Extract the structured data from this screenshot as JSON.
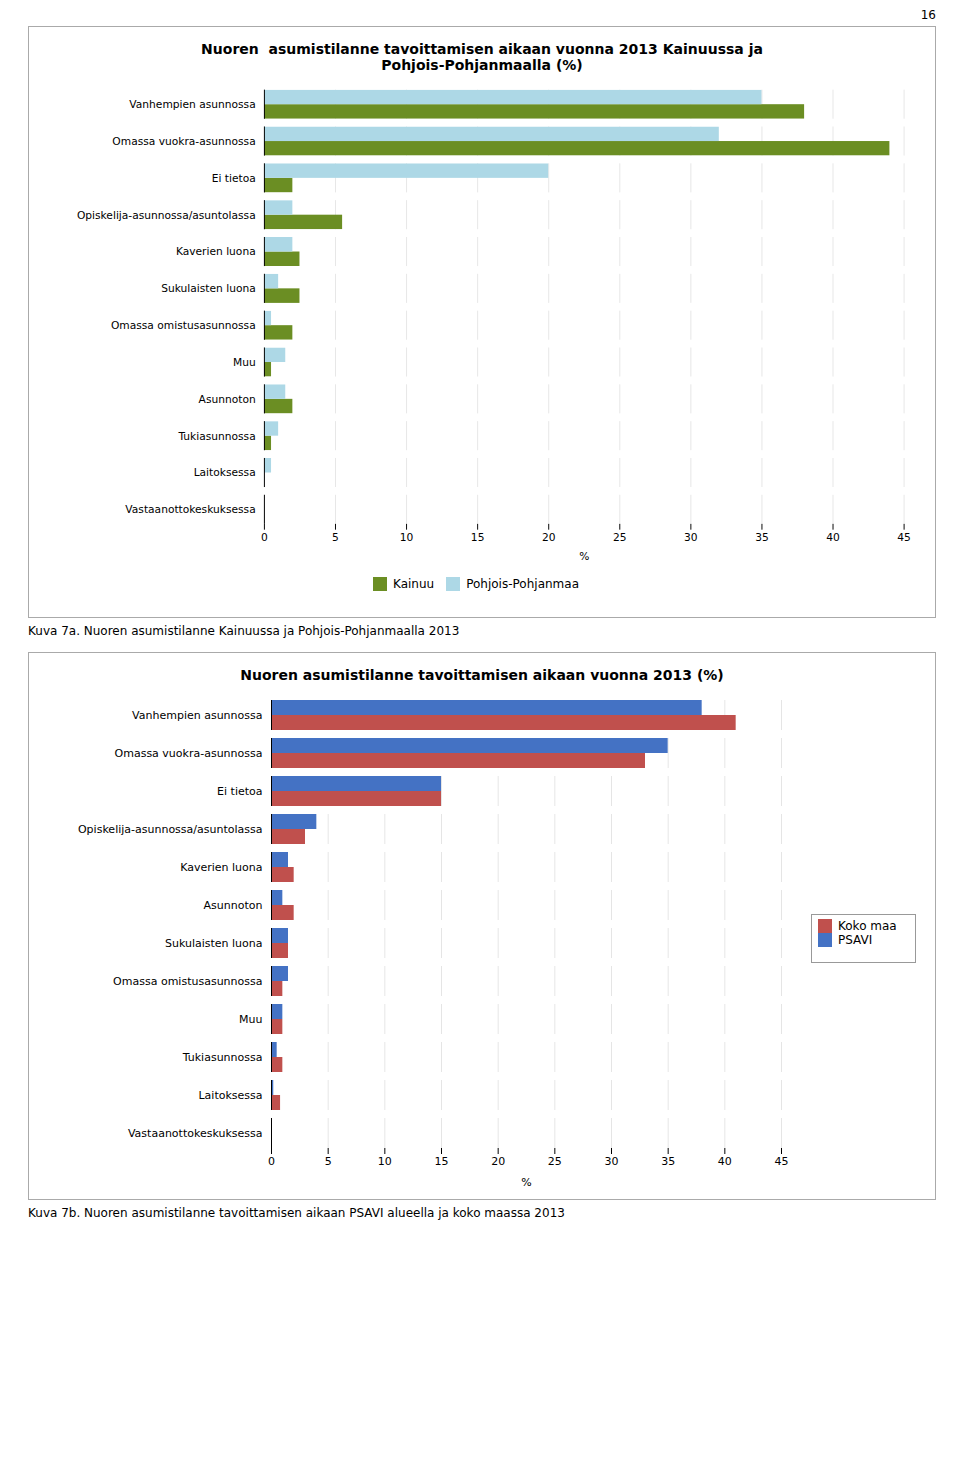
{
  "page_number": "16",
  "chart_data": [
    {
      "type": "bar",
      "orientation": "horizontal",
      "title": "Nuoren  asumistilanne tavoittamisen aikaan vuonna 2013 Kainuussa ja\nPohjois-Pohjanmaalla (%)",
      "categories": [
        "Vanhempien asunnossa",
        "Omassa vuokra-asunnossa",
        "Ei tietoa",
        "Opiskelija-asunnossa/asuntolassa",
        "Kaverien luona",
        "Sukulaisten luona",
        "Omassa omistusasunnossa",
        "Muu",
        "Asunnoton",
        "Tukiasunnossa",
        "Laitoksessa",
        "Vastaanottokeskuksessa"
      ],
      "series": [
        {
          "name": "Kainuu",
          "color": "#6b8e23",
          "values": [
            38.0,
            44.0,
            2.0,
            5.5,
            2.5,
            2.5,
            2.0,
            0.5,
            2.0,
            0.5,
            0.0,
            0.0
          ]
        },
        {
          "name": "Pohjois-Pohjanmaa",
          "color": "#add8e6",
          "values": [
            35.0,
            32.0,
            20.0,
            2.0,
            2.0,
            1.0,
            0.5,
            1.5,
            1.5,
            1.0,
            0.5,
            0.0
          ]
        }
      ],
      "xlabel": "%",
      "xlim": [
        0,
        45
      ],
      "xticks": [
        0,
        5,
        10,
        15,
        20,
        25,
        30,
        35,
        40,
        45
      ],
      "grid": true,
      "legend": "bottom",
      "caption": "Kuva 7a. Nuoren asumistilanne Kainuussa ja Pohjois-Pohjanmaalla 2013"
    },
    {
      "type": "bar",
      "orientation": "horizontal",
      "title": "Nuoren asumistilanne tavoittamisen aikaan vuonna 2013 (%)",
      "categories": [
        "Vanhempien asunnossa",
        "Omassa vuokra-asunnossa",
        "Ei tietoa",
        "Opiskelija-asunnossa/asuntolassa",
        "Kaverien luona",
        "Asunnoton",
        "Sukulaisten luona",
        "Omassa omistusasunnossa",
        "Muu",
        "Tukiasunnossa",
        "Laitoksessa",
        "Vastaanottokeskuksessa"
      ],
      "series": [
        {
          "name": "Koko maa",
          "color": "#c0504d",
          "values": [
            41.0,
            33.0,
            15.0,
            3.0,
            2.0,
            2.0,
            1.5,
            1.0,
            1.0,
            1.0,
            0.8,
            0.0
          ]
        },
        {
          "name": "PSAVI",
          "color": "#4472c4",
          "values": [
            38.0,
            35.0,
            15.0,
            4.0,
            1.5,
            1.0,
            1.5,
            1.5,
            1.0,
            0.5,
            0.2,
            0.0
          ]
        }
      ],
      "xlabel": "%",
      "xlim": [
        0,
        45
      ],
      "xticks": [
        0,
        5,
        10,
        15,
        20,
        25,
        30,
        35,
        40,
        45
      ],
      "grid": true,
      "legend": "right",
      "caption": "Kuva 7b. Nuoren asumistilanne tavoittamisen aikaan PSAVI alueella ja koko maassa 2013"
    }
  ]
}
